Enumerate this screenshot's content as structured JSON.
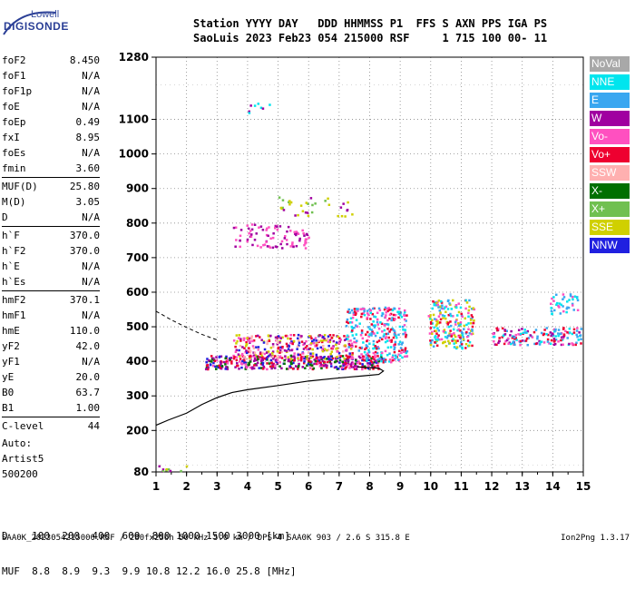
{
  "logo": {
    "top": "Lowell",
    "main": "DIGISONDE"
  },
  "header": {
    "row1": "Station YYYY DAY   DDD HHMMSS P1  FFS S AXN PPS IGA PS",
    "row2": "SaoLuis 2023 Feb23 054 215000 RSF     1 715 100 00- 11"
  },
  "params": [
    {
      "label": "foF2",
      "value": "8.450"
    },
    {
      "label": "foF1",
      "value": "N/A"
    },
    {
      "label": "foF1p",
      "value": "N/A"
    },
    {
      "label": "foE",
      "value": "N/A"
    },
    {
      "label": "foEp",
      "value": "0.49"
    },
    {
      "label": "fxI",
      "value": "8.95"
    },
    {
      "label": "foEs",
      "value": "N/A"
    },
    {
      "label": "fmin",
      "value": "3.60"
    },
    {
      "label": "MUF(D)",
      "value": "25.80",
      "sep": true
    },
    {
      "label": "M(D)",
      "value": "3.05"
    },
    {
      "label": "D",
      "value": "N/A"
    },
    {
      "label": "h`F",
      "value": "370.0",
      "sep": true
    },
    {
      "label": "h`F2",
      "value": "370.0"
    },
    {
      "label": "h`E",
      "value": "N/A"
    },
    {
      "label": "h`Es",
      "value": "N/A"
    },
    {
      "label": "hmF2",
      "value": "370.1",
      "sep": true
    },
    {
      "label": "hmF1",
      "value": "N/A"
    },
    {
      "label": "hmE",
      "value": "110.0"
    },
    {
      "label": "yF2",
      "value": "42.0"
    },
    {
      "label": "yF1",
      "value": "N/A"
    },
    {
      "label": "yE",
      "value": "20.0"
    },
    {
      "label": "B0",
      "value": "63.7"
    },
    {
      "label": "B1",
      "value": "1.00"
    },
    {
      "label": "C-level",
      "value": "44",
      "sep": true
    }
  ],
  "auto": {
    "line1": "Auto:",
    "line2": "Artist5",
    "line3": "500200"
  },
  "legend": [
    {
      "label": "NoVal",
      "color": "#a8a8a8"
    },
    {
      "label": "NNE",
      "color": "#00e5ee"
    },
    {
      "label": "E",
      "color": "#3aa7f0"
    },
    {
      "label": "W",
      "color": "#a000a0"
    },
    {
      "label": "Vo-",
      "color": "#ff50c0"
    },
    {
      "label": "Vo+",
      "color": "#ee0030"
    },
    {
      "label": "SSW",
      "color": "#ffb0b0"
    },
    {
      "label": "X-",
      "color": "#007000"
    },
    {
      "label": "X+",
      "color": "#70c050"
    },
    {
      "label": "SSE",
      "color": "#d0d000"
    },
    {
      "label": "NNW",
      "color": "#2020e0"
    }
  ],
  "dtable": {
    "row1": "D    100  200  400  600  800 1000 1500 3000 [km]",
    "row2": "MUF  8.8  8.9  9.3  9.9 10.8 12.2 16.0 25.8 [MHz]"
  },
  "footer": {
    "left": "SAA0K_2023054215000.RSF / 280fx256h 50 kHz 5.0 km / DPS-4 SAA0K 903 / 2.6 S 315.8 E",
    "right": "Ion2Png 1.3.17"
  },
  "chart_data": {
    "type": "scatter",
    "title": "",
    "xlabel": "",
    "ylabel": "",
    "xlim": [
      1,
      15
    ],
    "ylim": [
      80,
      1280
    ],
    "xticks": [
      1,
      2,
      3,
      4,
      5,
      6,
      7,
      8,
      9,
      10,
      11,
      12,
      13,
      14,
      15
    ],
    "yticks": [
      80,
      200,
      300,
      400,
      500,
      600,
      700,
      800,
      900,
      1000,
      1100,
      1280
    ],
    "grid": "dotted",
    "profile_curve": [
      [
        1.0,
        215
      ],
      [
        1.4,
        230
      ],
      [
        2.0,
        250
      ],
      [
        2.5,
        275
      ],
      [
        3.0,
        295
      ],
      [
        3.5,
        310
      ],
      [
        4.0,
        318
      ],
      [
        5.0,
        330
      ],
      [
        6.0,
        343
      ],
      [
        7.0,
        352
      ],
      [
        7.8,
        358
      ],
      [
        8.3,
        362
      ],
      [
        8.45,
        372
      ],
      [
        8.3,
        380
      ],
      [
        7.6,
        384
      ]
    ],
    "dashed_curve": [
      [
        1.0,
        545
      ],
      [
        1.5,
        520
      ],
      [
        2.0,
        498
      ],
      [
        2.5,
        478
      ],
      [
        3.0,
        462
      ]
    ],
    "trace_clusters": [
      {
        "x": [
          2.6,
          8.4
        ],
        "y": [
          380,
          420
        ],
        "colors": [
          "#a000a0",
          "#2020e0",
          "#ee0030",
          "#ff50c0",
          "#007000"
        ],
        "n": 420
      },
      {
        "x": [
          3.5,
          7.4
        ],
        "y": [
          410,
          480
        ],
        "colors": [
          "#a000a0",
          "#ee0030",
          "#ff50c0",
          "#2020e0",
          "#d0d000",
          "#ffb0b0"
        ],
        "n": 320
      },
      {
        "x": [
          7.2,
          9.2
        ],
        "y": [
          400,
          560
        ],
        "colors": [
          "#3aa7f0",
          "#00e5ee",
          "#ff50c0",
          "#ee0030"
        ],
        "n": 300
      },
      {
        "x": [
          9.9,
          11.4
        ],
        "y": [
          440,
          580
        ],
        "colors": [
          "#3aa7f0",
          "#00e5ee",
          "#ee0030",
          "#ff50c0",
          "#d0d000"
        ],
        "n": 220
      },
      {
        "x": [
          12.0,
          14.9
        ],
        "y": [
          450,
          500
        ],
        "colors": [
          "#ee0030",
          "#ff50c0",
          "#a000a0",
          "#00e5ee",
          "#3aa7f0"
        ],
        "n": 160
      },
      {
        "x": [
          13.9,
          14.9
        ],
        "y": [
          540,
          600
        ],
        "colors": [
          "#3aa7f0",
          "#00e5ee",
          "#ff50c0"
        ],
        "n": 40
      },
      {
        "x": [
          3.5,
          6.0
        ],
        "y": [
          730,
          800
        ],
        "colors": [
          "#a000a0",
          "#ff50c0"
        ],
        "n": 90
      },
      {
        "x": [
          5.0,
          7.4
        ],
        "y": [
          820,
          880
        ],
        "colors": [
          "#a000a0",
          "#70c050",
          "#d0d000"
        ],
        "n": 35
      },
      {
        "x": [
          4.0,
          4.7
        ],
        "y": [
          1110,
          1150
        ],
        "colors": [
          "#a000a0",
          "#00e5ee"
        ],
        "n": 8
      },
      {
        "x": [
          1.0,
          2.0
        ],
        "y": [
          80,
          100
        ],
        "colors": [
          "#70c050",
          "#a000a0",
          "#d0d000"
        ],
        "n": 10
      }
    ]
  }
}
